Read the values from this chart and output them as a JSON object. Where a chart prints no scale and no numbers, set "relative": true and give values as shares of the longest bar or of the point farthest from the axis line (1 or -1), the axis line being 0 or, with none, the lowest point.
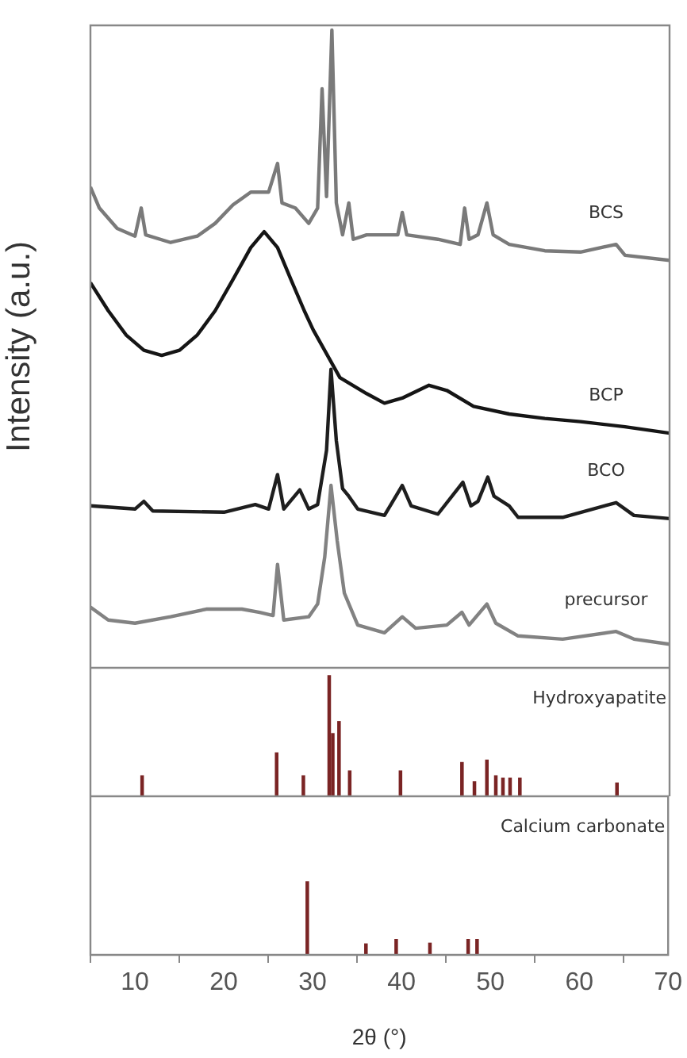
{
  "chart_data": [
    {
      "type": "line",
      "relative": true,
      "ylabel": "Intensity (a.u.)",
      "tick_labels": false,
      "xlim": [
        5,
        70
      ],
      "marker": "none",
      "series": [
        {
          "name": "BCS",
          "color": "#7a7a7a",
          "x": [
            5,
            6,
            8,
            10,
            10.7,
            11.2,
            14,
            17,
            19,
            21,
            23,
            25,
            26,
            26.5,
            28,
            29.5,
            30.5,
            31,
            31.5,
            32.1,
            32.6,
            33.3,
            34,
            34.5,
            36,
            39.5,
            40,
            40.5,
            44,
            46.5,
            47,
            47.5,
            48.5,
            49.5,
            50.2,
            52,
            56,
            60,
            64,
            65,
            70
          ],
          "values": [
            0.754,
            0.721,
            0.689,
            0.677,
            0.721,
            0.679,
            0.667,
            0.677,
            0.697,
            0.726,
            0.746,
            0.746,
            0.791,
            0.729,
            0.721,
            0.697,
            0.721,
            0.908,
            0.739,
            1,
            0.729,
            0.679,
            0.729,
            0.672,
            0.679,
            0.679,
            0.714,
            0.679,
            0.672,
            0.664,
            0.721,
            0.672,
            0.679,
            0.729,
            0.679,
            0.664,
            0.654,
            0.652,
            0.664,
            0.647,
            0.639
          ]
        },
        {
          "name": "BCP",
          "color": "#151515",
          "x": [
            5,
            7,
            9,
            11,
            13,
            15,
            17,
            19,
            21,
            23,
            24.5,
            26,
            27.5,
            29,
            30,
            33,
            36,
            38,
            40,
            43,
            45,
            48,
            52,
            56,
            60,
            65,
            70
          ],
          "values": [
            0.604,
            0.56,
            0.522,
            0.498,
            0.49,
            0.498,
            0.522,
            0.56,
            0.609,
            0.659,
            0.684,
            0.659,
            0.609,
            0.56,
            0.53,
            0.455,
            0.43,
            0.415,
            0.423,
            0.443,
            0.435,
            0.41,
            0.398,
            0.391,
            0.386,
            0.378,
            0.368
          ]
        },
        {
          "name": "BCO",
          "color": "#1e1e1e",
          "x": [
            5,
            10,
            11,
            12,
            20,
            23.5,
            25,
            26,
            26.7,
            28.5,
            29.5,
            30.5,
            31.5,
            32,
            32.6,
            33.3,
            34,
            35,
            38,
            40,
            41,
            44,
            46.8,
            47.7,
            48.5,
            49.6,
            50.3,
            52,
            53,
            58,
            64,
            66,
            70
          ],
          "values": [
            0.254,
            0.249,
            0.261,
            0.246,
            0.244,
            0.256,
            0.249,
            0.303,
            0.249,
            0.279,
            0.249,
            0.256,
            0.341,
            0.468,
            0.356,
            0.281,
            0.269,
            0.249,
            0.239,
            0.286,
            0.254,
            0.241,
            0.291,
            0.254,
            0.261,
            0.299,
            0.269,
            0.254,
            0.236,
            0.236,
            0.259,
            0.239,
            0.234
          ]
        },
        {
          "name": "precursor",
          "color": "#828282",
          "x": [
            5,
            7,
            10,
            14,
            18,
            22,
            24,
            25.5,
            26,
            26.7,
            29.5,
            30.5,
            31.3,
            32,
            32.7,
            33.5,
            35,
            38,
            40,
            41.5,
            45,
            46.7,
            47.5,
            49.5,
            50.5,
            53,
            58,
            64,
            66,
            70
          ],
          "values": [
            0.095,
            0.075,
            0.07,
            0.08,
            0.092,
            0.092,
            0.087,
            0.082,
            0.162,
            0.075,
            0.08,
            0.1,
            0.174,
            0.286,
            0.199,
            0.117,
            0.067,
            0.055,
            0.08,
            0.062,
            0.067,
            0.087,
            0.067,
            0.1,
            0.07,
            0.05,
            0.045,
            0.057,
            0.045,
            0.037
          ]
        }
      ]
    },
    {
      "type": "bar",
      "relative": true,
      "tick_labels": false,
      "xlim": [
        5,
        70
      ],
      "series": [
        {
          "name": "Hydroxyapatite",
          "color": "#7a2424",
          "x": [
            10.8,
            25.9,
            28.9,
            31.8,
            32.2,
            32.9,
            34.1,
            39.8,
            46.7,
            48.1,
            49.5,
            50.5,
            51.3,
            52.1,
            53.2,
            64.1
          ],
          "values": [
            0.17,
            0.36,
            0.17,
            1,
            0.52,
            0.62,
            0.21,
            0.21,
            0.28,
            0.12,
            0.3,
            0.17,
            0.15,
            0.15,
            0.15,
            0.11
          ]
        }
      ]
    },
    {
      "type": "bar",
      "relative": true,
      "tick_labels": "x",
      "xlim": [
        5,
        70
      ],
      "xticks": [
        10,
        20,
        30,
        40,
        50,
        60,
        70
      ],
      "xlabel": "2θ (°)",
      "series": [
        {
          "name": "Calcium carbonate",
          "color": "#7a2424",
          "x": [
            29.4,
            36,
            39.4,
            43.2,
            47.5,
            48.5
          ],
          "values": [
            1,
            0.15,
            0.21,
            0.16,
            0.21,
            0.21
          ]
        }
      ]
    }
  ]
}
